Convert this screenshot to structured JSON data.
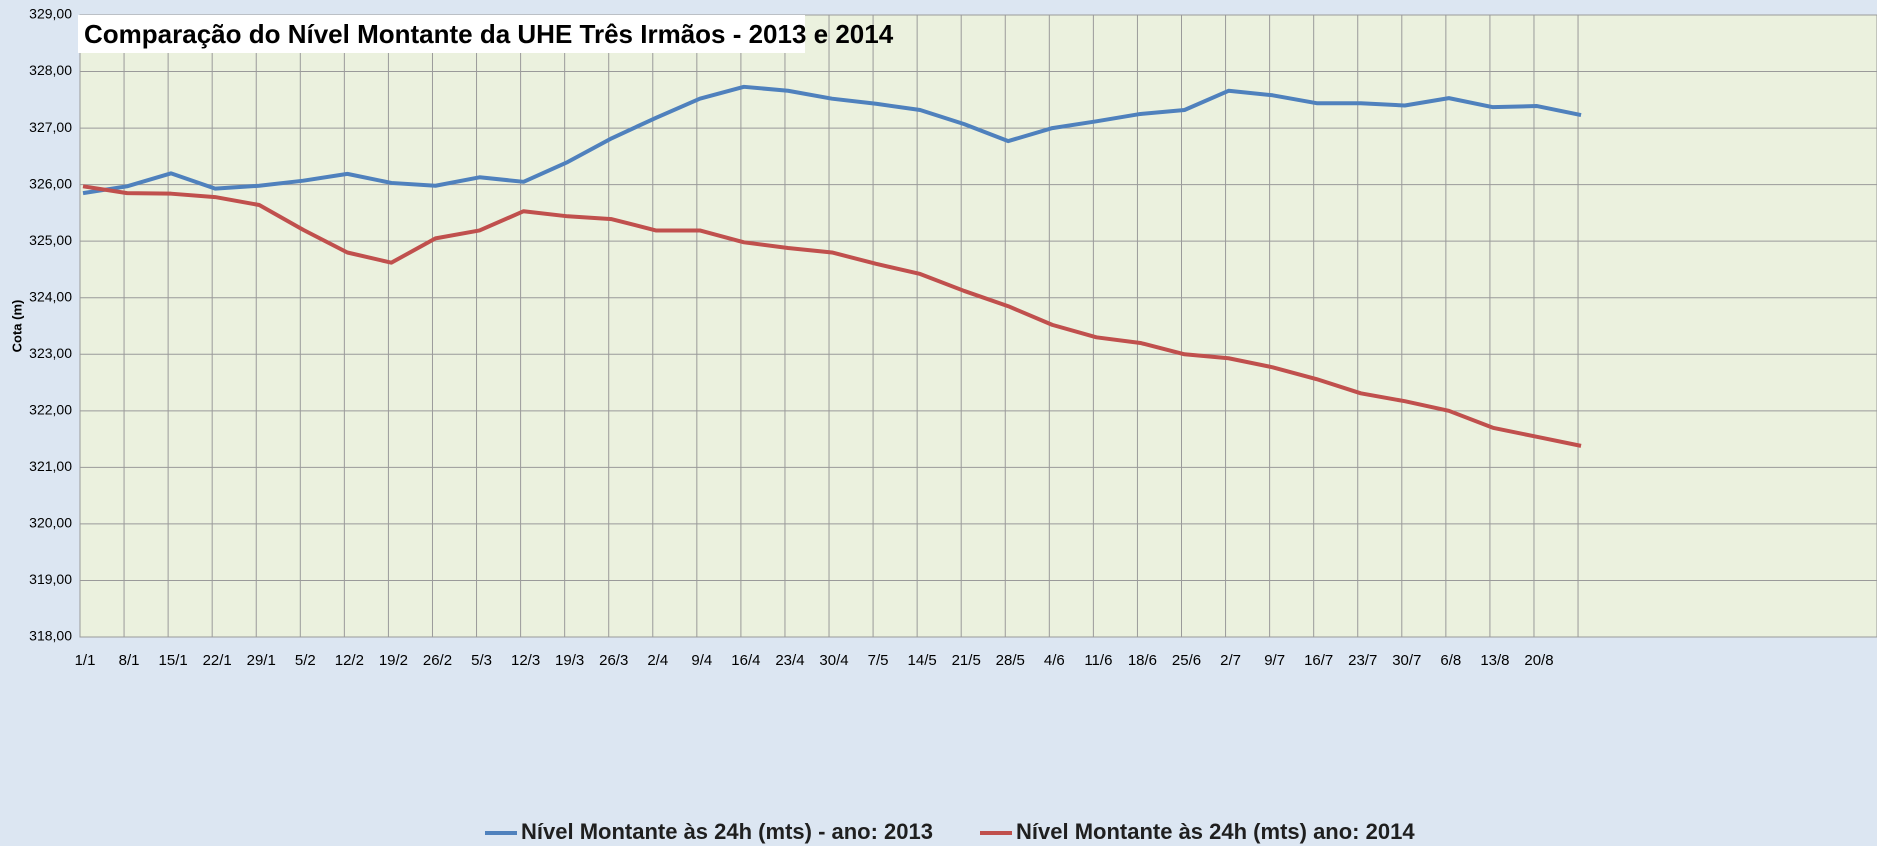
{
  "chart_data": {
    "type": "line",
    "title": "Comparação do Nível Montante da UHE Três Irmãos   -   2013 e 2014",
    "y_label": "Cota (m)",
    "categories": [
      "1/1",
      "8/1",
      "15/1",
      "22/1",
      "29/1",
      "5/2",
      "12/2",
      "19/2",
      "26/2",
      "5/3",
      "12/3",
      "19/3",
      "26/3",
      "2/4",
      "9/4",
      "16/4",
      "23/4",
      "30/4",
      "7/5",
      "14/5",
      "21/5",
      "28/5",
      "4/6",
      "11/6",
      "18/6",
      "25/6",
      "2/7",
      "9/7",
      "16/7",
      "23/7",
      "30/7",
      "6/8",
      "13/8",
      "20/8",
      null
    ],
    "series": [
      {
        "name": "Nível Montante às 24h (mts) - ano: 2013",
        "color": "#4f81bd",
        "values": [
          325.85,
          325.97,
          326.2,
          325.93,
          325.98,
          326.07,
          326.19,
          326.03,
          325.98,
          326.13,
          326.05,
          326.4,
          326.82,
          327.18,
          327.52,
          327.73,
          327.66,
          327.52,
          327.43,
          327.32,
          327.07,
          326.77,
          327.0,
          327.12,
          327.25,
          327.32,
          327.66,
          327.58,
          327.44,
          327.44,
          327.4,
          327.53,
          327.37,
          327.39,
          327.23
        ]
      },
      {
        "name": "Nível Montante às 24h (mts)  ano: 2014",
        "color": "#c0504d",
        "values": [
          325.97,
          325.85,
          325.84,
          325.78,
          325.64,
          325.2,
          324.8,
          324.62,
          325.05,
          325.19,
          325.53,
          325.44,
          325.39,
          325.19,
          325.19,
          324.98,
          324.88,
          324.8,
          324.6,
          324.42,
          324.12,
          323.85,
          323.52,
          323.3,
          323.2,
          323.0,
          322.93,
          322.77,
          322.56,
          322.31,
          322.17,
          322.0,
          321.7,
          321.54,
          321.38
        ]
      }
    ],
    "ylim": [
      318,
      329
    ],
    "yticks": [
      {
        "value": 318,
        "label": "318,00"
      },
      {
        "value": 319,
        "label": "319,00"
      },
      {
        "value": 320,
        "label": "320,00"
      },
      {
        "value": 321,
        "label": "321,00"
      },
      {
        "value": 322,
        "label": "322,00"
      },
      {
        "value": 323,
        "label": "323,00"
      },
      {
        "value": 324,
        "label": "324,00"
      },
      {
        "value": 325,
        "label": "325,00"
      },
      {
        "value": 326,
        "label": "326,00"
      },
      {
        "value": 327,
        "label": "327,00"
      },
      {
        "value": 328,
        "label": "328,00"
      },
      {
        "value": 329,
        "label": "329,00"
      }
    ],
    "grid": true,
    "legend": "bottom"
  }
}
